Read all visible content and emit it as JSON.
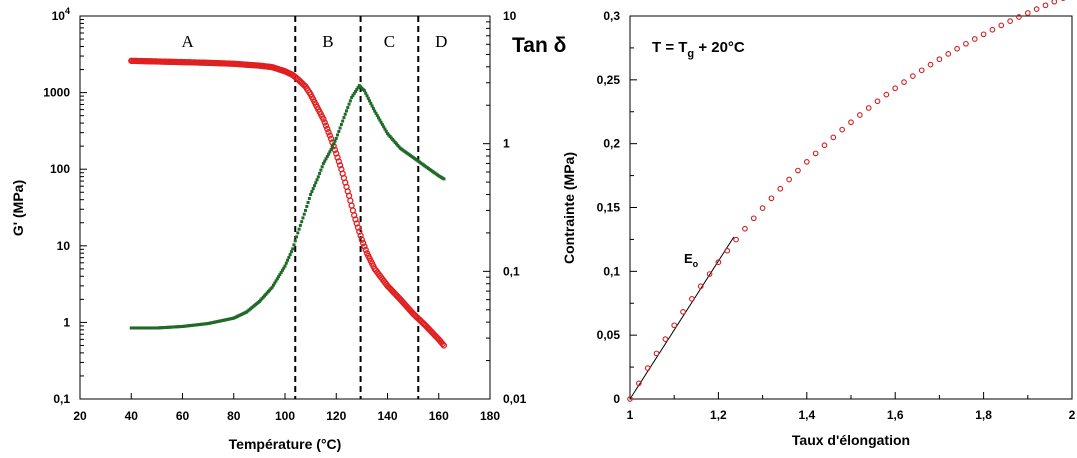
{
  "chart_data": [
    {
      "type": "line",
      "title": "",
      "xlabel": "Température (°C)",
      "ylabel": "G' (MPa)",
      "y2label": "Tan δ",
      "xlim": [
        20,
        180
      ],
      "ylim": [
        0.1,
        10000
      ],
      "y2lim": [
        0.01,
        10
      ],
      "yscale": "log",
      "y2scale": "log",
      "x_ticks": [
        "20",
        "40",
        "60",
        "80",
        "100",
        "120",
        "140",
        "160",
        "180"
      ],
      "y_ticks": [
        "0,1",
        "1",
        "10",
        "100",
        "1000",
        "10⁴"
      ],
      "y2_ticks": [
        "0,01",
        "0,1",
        "1",
        "10"
      ],
      "regions": [
        "A",
        "B",
        "C",
        "D"
      ],
      "dividers_x": [
        104,
        129.5,
        152
      ],
      "grid": false,
      "series": [
        {
          "name": "",
          "axis": "left",
          "color": "#e02020",
          "marker": "circle",
          "points": [
            [
              40,
              2600
            ],
            [
              50,
              2550
            ],
            [
              60,
              2500
            ],
            [
              70,
              2450
            ],
            [
              80,
              2380
            ],
            [
              90,
              2250
            ],
            [
              95,
              2150
            ],
            [
              100,
              1900
            ],
            [
              103,
              1700
            ],
            [
              105,
              1500
            ],
            [
              108,
              1200
            ],
            [
              110,
              950
            ],
            [
              112,
              700
            ],
            [
              115,
              450
            ],
            [
              118,
              250
            ],
            [
              120,
              160
            ],
            [
              122,
              100
            ],
            [
              125,
              45
            ],
            [
              127,
              25
            ],
            [
              130,
              12
            ],
            [
              132,
              8
            ],
            [
              135,
              5
            ],
            [
              140,
              3
            ],
            [
              145,
              2
            ],
            [
              150,
              1.3
            ],
            [
              155,
              0.9
            ],
            [
              160,
              0.6
            ],
            [
              162,
              0.5
            ]
          ]
        },
        {
          "name": "",
          "axis": "right",
          "color": "#1e6a26",
          "marker": "square",
          "points": [
            [
              40,
              0.036
            ],
            [
              50,
              0.036
            ],
            [
              60,
              0.037
            ],
            [
              70,
              0.039
            ],
            [
              80,
              0.043
            ],
            [
              85,
              0.048
            ],
            [
              90,
              0.058
            ],
            [
              95,
              0.075
            ],
            [
              100,
              0.11
            ],
            [
              103,
              0.15
            ],
            [
              105,
              0.2
            ],
            [
              108,
              0.3
            ],
            [
              110,
              0.4
            ],
            [
              113,
              0.55
            ],
            [
              115,
              0.7
            ],
            [
              118,
              0.9
            ],
            [
              120,
              1.1
            ],
            [
              123,
              1.6
            ],
            [
              126,
              2.3
            ],
            [
              129,
              2.85
            ],
            [
              131,
              2.6
            ],
            [
              135,
              1.8
            ],
            [
              140,
              1.2
            ],
            [
              145,
              0.92
            ],
            [
              150,
              0.78
            ],
            [
              155,
              0.66
            ],
            [
              160,
              0.56
            ],
            [
              162,
              0.53
            ]
          ]
        }
      ]
    },
    {
      "type": "scatter",
      "title": "",
      "annotation": {
        "prefix": "T = T",
        "subscript": "g",
        "suffix": " + 20°C"
      },
      "tangent_label": {
        "main": "E",
        "subscript": "o"
      },
      "xlabel": "Taux d'élongation",
      "ylabel": "Contrainte (MPa)",
      "xlim": [
        1,
        2
      ],
      "ylim": [
        0,
        0.3
      ],
      "x_ticks": [
        "1",
        "1,2",
        "1,4",
        "1,6",
        "1,8",
        "2"
      ],
      "y_ticks": [
        "0",
        "0,05",
        "0,1",
        "0,15",
        "0,2",
        "0,25",
        "0,3"
      ],
      "tangent_line": [
        [
          1.0,
          0.0
        ],
        [
          1.235,
          0.127
        ]
      ],
      "grid": false,
      "series": [
        {
          "name": "",
          "color": "#d02020",
          "marker": "open-circle",
          "curve": "0.402 * (1 - exp(-1.55 * (x - 1)))",
          "x_start": 1.0,
          "x_end": 2.0,
          "x_step": 0.02
        }
      ]
    }
  ]
}
